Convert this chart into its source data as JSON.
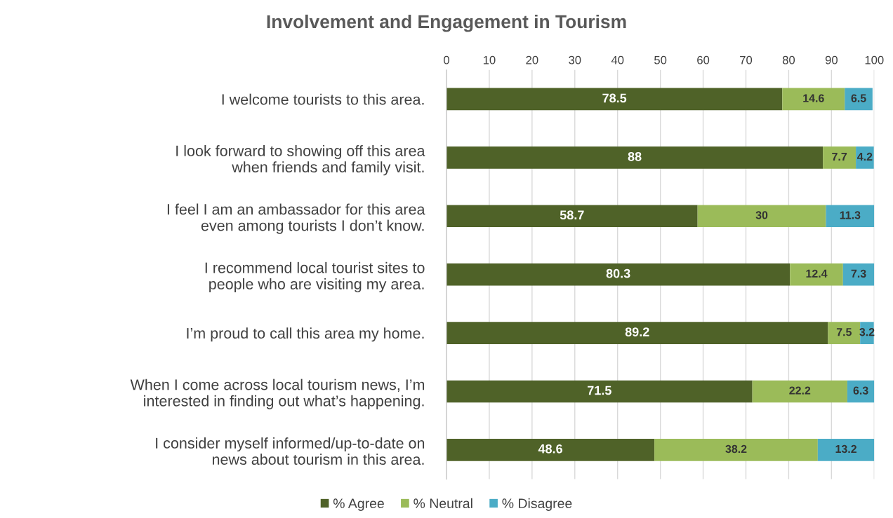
{
  "chart_data": {
    "type": "bar",
    "title": "Involvement and Engagement in Tourism",
    "orientation": "horizontal",
    "stacked": true,
    "categories": [
      "I welcome tourists to this area.",
      "I look forward to showing off this area when friends and family visit.",
      "I feel I am an ambassador for this area even among tourists I don’t know.",
      "I recommend local tourist sites to people who are visiting my area.",
      "I’m proud to call this area my home.",
      "When I come across local tourism news, I’m interested in finding out what’s happening.",
      "I consider myself informed/up-to-date on news about tourism in this area."
    ],
    "series": [
      {
        "name": "% Agree",
        "color": "#4f6228",
        "values": [
          78.5,
          88,
          58.7,
          80.3,
          89.2,
          71.5,
          48.6
        ]
      },
      {
        "name": "% Neutral",
        "color": "#9bbb59",
        "values": [
          14.6,
          7.7,
          30,
          12.4,
          7.5,
          22.2,
          38.2
        ]
      },
      {
        "name": "% Disagree",
        "color": "#4bacc6",
        "values": [
          6.5,
          4.2,
          11.3,
          7.3,
          3.2,
          6.3,
          13.2
        ]
      }
    ],
    "xlim": [
      0,
      100
    ],
    "xticks": [
      0,
      10,
      20,
      30,
      40,
      50,
      60,
      70,
      80,
      90,
      100
    ],
    "grid": "x",
    "legend": "bottom",
    "data_labels": true
  }
}
